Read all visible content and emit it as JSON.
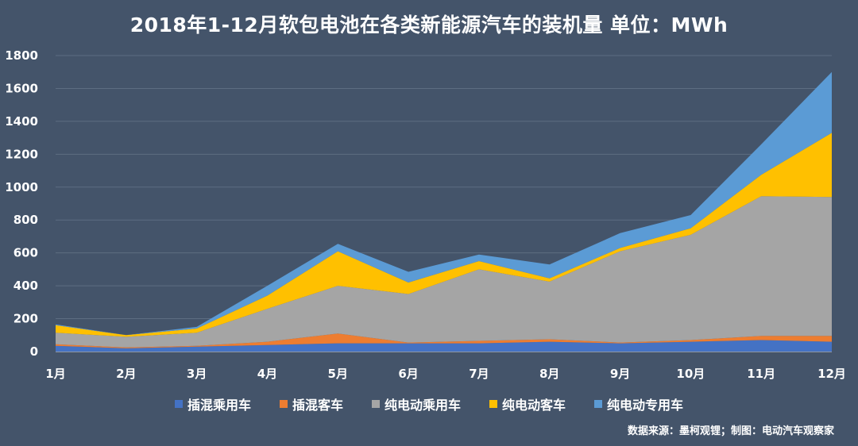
{
  "title": "2018年1-12月软包电池在各类新能源汽车的装机量  单位：MWh",
  "source_note": "数据来源：墨柯观锂；制图：电动汽车观察家",
  "chart_data": {
    "type": "area",
    "stacked": true,
    "categories": [
      "1月",
      "2月",
      "3月",
      "4月",
      "5月",
      "6月",
      "7月",
      "8月",
      "9月",
      "10月",
      "11月",
      "12月"
    ],
    "ylim": [
      0,
      1800
    ],
    "yticks": [
      0,
      200,
      400,
      600,
      800,
      1000,
      1200,
      1400,
      1600,
      1800
    ],
    "grid": true,
    "legend_position": "bottom",
    "series": [
      {
        "name": "插混乘用车",
        "color": "#4472C4",
        "values": [
          35,
          20,
          30,
          40,
          50,
          50,
          50,
          60,
          50,
          60,
          70,
          60
        ]
      },
      {
        "name": "插混客车",
        "color": "#ED7D31",
        "values": [
          10,
          5,
          5,
          20,
          60,
          5,
          15,
          15,
          5,
          10,
          25,
          35
        ]
      },
      {
        "name": "纯电动乘用车",
        "color": "#A5A5A5",
        "values": [
          70,
          65,
          80,
          200,
          290,
          295,
          435,
          350,
          555,
          640,
          850,
          845
        ]
      },
      {
        "name": "纯电动客车",
        "color": "#FFC000",
        "values": [
          45,
          10,
          25,
          80,
          210,
          70,
          50,
          20,
          20,
          40,
          130,
          390
        ]
      },
      {
        "name": "纯电动专用车",
        "color": "#5B9BD5",
        "values": [
          5,
          0,
          10,
          60,
          45,
          65,
          40,
          85,
          90,
          80,
          185,
          370
        ]
      }
    ]
  }
}
